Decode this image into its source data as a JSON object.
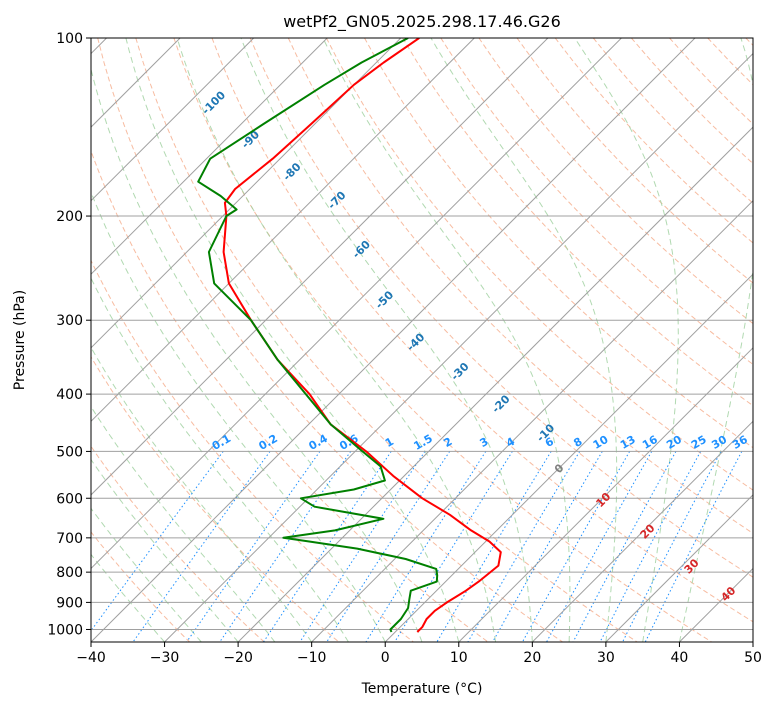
{
  "chart_data": {
    "type": "line",
    "title": "wetPf2_GN05.2025.298.17.46.G26",
    "xlabel": "Temperature (°C)",
    "ylabel": "Pressure (hPa)",
    "xlim": [
      -40,
      50
    ],
    "ylim": [
      1050,
      100
    ],
    "yscale": "log",
    "grid": true,
    "x_ticks": [
      "−40",
      "−30",
      "−20",
      "−10",
      "0",
      "10",
      "20",
      "30",
      "40",
      "50"
    ],
    "y_ticks": [
      "100",
      "200",
      "300",
      "400",
      "500",
      "600",
      "700",
      "800",
      "900",
      "1000"
    ],
    "series": [
      {
        "color": "#ff0000",
        "pressure": [
          100,
          110,
          120,
          140,
          160,
          180,
          190,
          200,
          230,
          260,
          300,
          350,
          400,
          450,
          500,
          550,
          600,
          640,
          680,
          710,
          740,
          780,
          800,
          830,
          860,
          880,
          900,
          930,
          960,
          990,
          1010
        ],
        "temperature": [
          -77.5,
          -79,
          -80,
          -80.5,
          -81,
          -82,
          -81.5,
          -79.5,
          -75,
          -70,
          -62,
          -53,
          -44,
          -37,
          -28.5,
          -21.5,
          -14.5,
          -8.5,
          -3.5,
          0.5,
          3.5,
          5.0,
          4.8,
          4.5,
          4.0,
          3.5,
          3.0,
          2.5,
          2.5,
          3.0,
          3.0
        ]
      },
      {
        "color": "#008000",
        "pressure": [
          100,
          110,
          120,
          140,
          160,
          175,
          185,
          195,
          200,
          230,
          260,
          300,
          350,
          400,
          450,
          500,
          530,
          560,
          580,
          600,
          620,
          650,
          680,
          700,
          710,
          730,
          760,
          790,
          810,
          830,
          860,
          890,
          920,
          960,
          1000,
          1010
        ],
        "temperature": [
          -79,
          -82,
          -84,
          -87,
          -89.5,
          -88,
          -83,
          -79,
          -79.5,
          -77,
          -72,
          -62,
          -53,
          -44.5,
          -37,
          -29,
          -24.5,
          -22,
          -25,
          -31,
          -28,
          -17,
          -22,
          -28,
          -24,
          -16.5,
          -8.5,
          -3,
          -2,
          -1.2,
          -3.5,
          -2.5,
          -1.5,
          -1.0,
          -1.0,
          -0.5
        ]
      }
    ],
    "dry_adiabat_labels": [
      "0",
      "10",
      "20",
      "30",
      "40"
    ],
    "moist_adiabat_labels": [
      "-100",
      "-90",
      "-80",
      "-70",
      "-60",
      "-50",
      "-40",
      "-30",
      "-20",
      "-10"
    ],
    "mixing_ratio_labels": [
      "0.1",
      "0.2",
      "0.4",
      "0.6",
      "1",
      "1.5",
      "2",
      "3",
      "4",
      "6",
      "8",
      "10",
      "13",
      "16",
      "20",
      "25",
      "30",
      "36"
    ]
  }
}
